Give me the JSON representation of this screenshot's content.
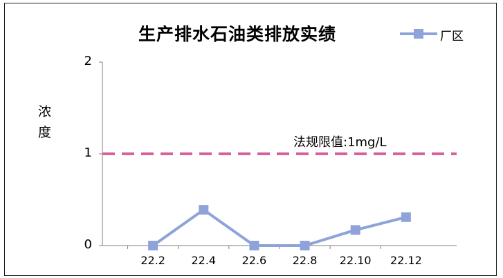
{
  "chart_data": {
    "type": "line",
    "title": "生产排水石油类排放实绩",
    "ylabel": "浓度",
    "categories": [
      "22.2",
      "22.4",
      "22.6",
      "22.8",
      "22.10",
      "22.12"
    ],
    "ylim": [
      0,
      2
    ],
    "yticks": [
      "0",
      "1",
      "2"
    ],
    "series": [
      {
        "name": "厂区",
        "values": [
          0,
          0.39,
          0,
          0,
          0.17,
          0.31
        ],
        "color": "#8ea3d9",
        "marker": "square"
      }
    ],
    "reference_line": {
      "value": 1,
      "label": "法规限值:1mg/L",
      "color": "#d9609f",
      "style": "dashed"
    },
    "grid": false,
    "legend_position": "top-right"
  }
}
